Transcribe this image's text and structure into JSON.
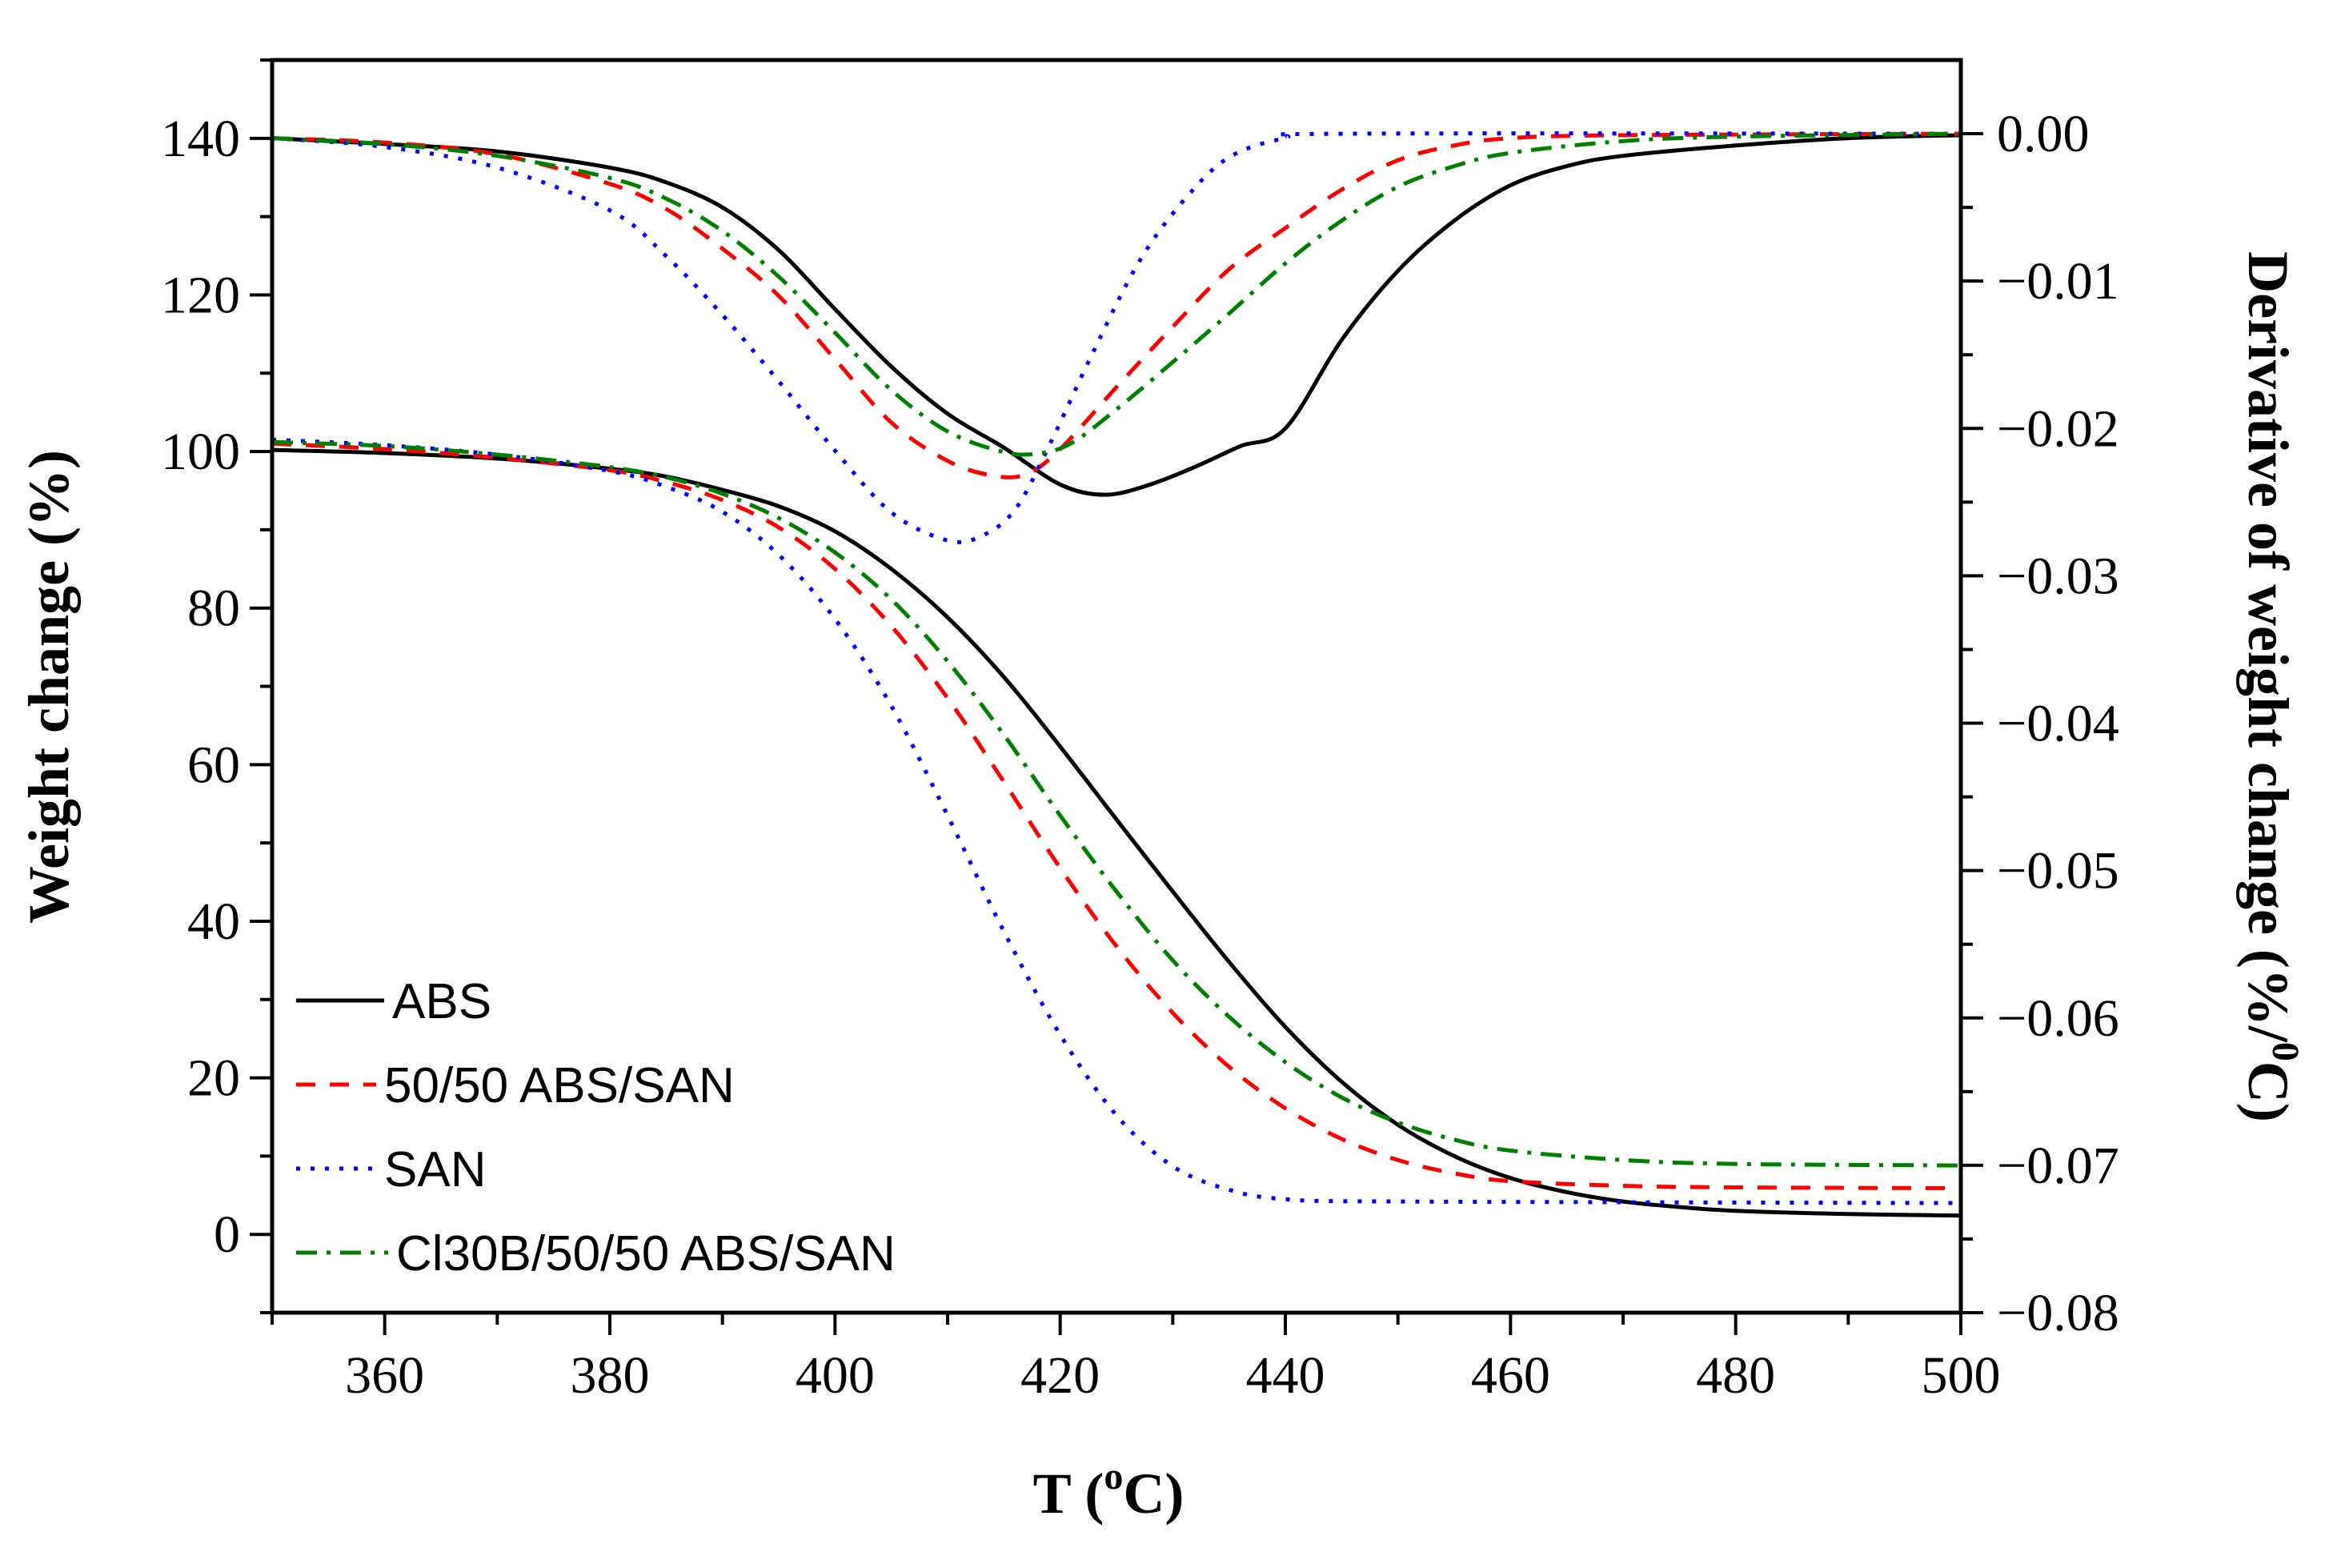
{
  "chart_data": {
    "type": "line",
    "xlabel": "T (",
    "xlabel_sup": "o",
    "xlabel_end": "C)",
    "ylabel_left": "Weight change (%)",
    "ylabel_right": "Derivative of weight change (%/",
    "ylabel_right_sup": "0",
    "ylabel_right_end": "C)",
    "xlim": [
      350,
      500
    ],
    "ylim_left": [
      -10,
      150
    ],
    "ylim_right": [
      -0.08,
      0.005
    ],
    "x_ticks": [
      "360",
      "380",
      "400",
      "420",
      "440",
      "460",
      "480",
      "500"
    ],
    "y_left_ticks": [
      "0",
      "20",
      "40",
      "60",
      "80",
      "100",
      "120",
      "140"
    ],
    "y_right_ticks": [
      "0.00",
      "−0.01",
      "−0.02",
      "−0.03",
      "−0.04",
      "−0.05",
      "−0.06",
      "−0.07",
      "−0.08"
    ],
    "legend": [
      "ABS",
      "50/50 ABS/SAN",
      "SAN",
      "Cl30B/50/50 ABS/SAN"
    ],
    "legend_position": "bottom-left",
    "series": [
      {
        "name": "ABS",
        "color": "#000000",
        "style": "solid",
        "weight": [
          [
            350,
            100.2
          ],
          [
            360,
            99.8
          ],
          [
            370,
            99.1
          ],
          [
            380,
            97.8
          ],
          [
            385,
            96.8
          ],
          [
            390,
            95.1
          ],
          [
            395,
            93
          ],
          [
            400,
            89.8
          ],
          [
            405,
            85
          ],
          [
            410,
            78.8
          ],
          [
            415,
            71.2
          ],
          [
            420,
            62.3
          ],
          [
            425,
            53
          ],
          [
            430,
            43.8
          ],
          [
            435,
            34.8
          ],
          [
            440,
            26.5
          ],
          [
            445,
            19.5
          ],
          [
            450,
            14
          ],
          [
            455,
            10
          ],
          [
            460,
            7.2
          ],
          [
            465,
            5.4
          ],
          [
            470,
            4.2
          ],
          [
            475,
            3.5
          ],
          [
            480,
            3.0
          ],
          [
            490,
            2.6
          ],
          [
            500,
            2.4
          ]
        ],
        "derivative": [
          [
            350,
            -0.0003
          ],
          [
            360,
            -0.0007
          ],
          [
            370,
            -0.0012
          ],
          [
            380,
            -0.0023
          ],
          [
            385,
            -0.0033
          ],
          [
            390,
            -0.005
          ],
          [
            395,
            -0.0079
          ],
          [
            400,
            -0.0119
          ],
          [
            405,
            -0.0158
          ],
          [
            410,
            -0.019
          ],
          [
            415,
            -0.0213
          ],
          [
            420,
            -0.0238
          ],
          [
            424,
            -0.0245
          ],
          [
            428,
            -0.0238
          ],
          [
            432,
            -0.0226
          ],
          [
            436,
            -0.0212
          ],
          [
            440,
            -0.02
          ],
          [
            445,
            -0.014
          ],
          [
            450,
            -0.0093
          ],
          [
            455,
            -0.0059
          ],
          [
            460,
            -0.0035
          ],
          [
            465,
            -0.0022
          ],
          [
            470,
            -0.0015
          ],
          [
            480,
            -0.0008
          ],
          [
            490,
            -0.0003
          ],
          [
            500,
            -0.0001
          ]
        ]
      },
      {
        "name": "50/50 ABS/SAN",
        "color": "#ff0000",
        "style": "dashed",
        "weight": [
          [
            350,
            101
          ],
          [
            360,
            100.3
          ],
          [
            370,
            99.2
          ],
          [
            380,
            97.6
          ],
          [
            385,
            96.1
          ],
          [
            390,
            93.8
          ],
          [
            395,
            90.3
          ],
          [
            400,
            85
          ],
          [
            405,
            77.7
          ],
          [
            410,
            68.5
          ],
          [
            415,
            57.8
          ],
          [
            420,
            46.8
          ],
          [
            425,
            36.8
          ],
          [
            430,
            28.3
          ],
          [
            435,
            21.4
          ],
          [
            440,
            16.1
          ],
          [
            445,
            12.2
          ],
          [
            450,
            9.5
          ],
          [
            455,
            7.8
          ],
          [
            460,
            6.8
          ],
          [
            470,
            6.2
          ],
          [
            480,
            6.0
          ],
          [
            500,
            5.9
          ]
        ],
        "derivative": [
          [
            350,
            -0.0003
          ],
          [
            360,
            -0.0006
          ],
          [
            370,
            -0.0014
          ],
          [
            380,
            -0.0034
          ],
          [
            385,
            -0.0051
          ],
          [
            390,
            -0.0078
          ],
          [
            395,
            -0.011
          ],
          [
            400,
            -0.0153
          ],
          [
            405,
            -0.0196
          ],
          [
            410,
            -0.0222
          ],
          [
            414,
            -0.0232
          ],
          [
            417,
            -0.0231
          ],
          [
            420,
            -0.0214
          ],
          [
            425,
            -0.0172
          ],
          [
            430,
            -0.0131
          ],
          [
            435,
            -0.0092
          ],
          [
            440,
            -0.0064
          ],
          [
            445,
            -0.0038
          ],
          [
            450,
            -0.0018
          ],
          [
            455,
            -0.0008
          ],
          [
            460,
            -0.0003
          ],
          [
            470,
            -0.0001
          ],
          [
            500,
            0
          ]
        ]
      },
      {
        "name": "SAN",
        "color": "#0000ff",
        "style": "dotted",
        "weight": [
          [
            350,
            101.5
          ],
          [
            360,
            100.8
          ],
          [
            370,
            99.6
          ],
          [
            380,
            97.5
          ],
          [
            385,
            95.5
          ],
          [
            390,
            92.3
          ],
          [
            395,
            86.8
          ],
          [
            400,
            78.6
          ],
          [
            405,
            67.5
          ],
          [
            410,
            53.5
          ],
          [
            415,
            38.7
          ],
          [
            420,
            25.5
          ],
          [
            425,
            15.2
          ],
          [
            430,
            8.7
          ],
          [
            435,
            5.7
          ],
          [
            440,
            4.5
          ],
          [
            450,
            4.2
          ],
          [
            500,
            4.0
          ]
        ],
        "derivative": [
          [
            350,
            -0.0003
          ],
          [
            360,
            -0.0009
          ],
          [
            370,
            -0.0023
          ],
          [
            380,
            -0.0052
          ],
          [
            385,
            -0.0083
          ],
          [
            390,
            -0.0123
          ],
          [
            395,
            -0.0168
          ],
          [
            400,
            -0.0215
          ],
          [
            405,
            -0.0257
          ],
          [
            410,
            -0.0276
          ],
          [
            413,
            -0.0273
          ],
          [
            416,
            -0.0255
          ],
          [
            419,
            -0.0212
          ],
          [
            423,
            -0.0147
          ],
          [
            427,
            -0.0087
          ],
          [
            431,
            -0.0045
          ],
          [
            435,
            -0.0016
          ],
          [
            440,
            -0.0003
          ],
          [
            445,
            0
          ],
          [
            500,
            0
          ]
        ]
      },
      {
        "name": "Cl30B/50/50 ABS/SAN",
        "color": "#008000",
        "style": "dashdot",
        "weight": [
          [
            350,
            101.2
          ],
          [
            360,
            100.7
          ],
          [
            370,
            99.6
          ],
          [
            380,
            98
          ],
          [
            385,
            96.7
          ],
          [
            390,
            94.6
          ],
          [
            395,
            91.5
          ],
          [
            400,
            87.1
          ],
          [
            405,
            81.1
          ],
          [
            410,
            73.2
          ],
          [
            415,
            63.8
          ],
          [
            420,
            53.5
          ],
          [
            425,
            43.8
          ],
          [
            430,
            35
          ],
          [
            435,
            27.8
          ],
          [
            440,
            22
          ],
          [
            445,
            17.5
          ],
          [
            450,
            14.3
          ],
          [
            455,
            12.1
          ],
          [
            460,
            10.7
          ],
          [
            470,
            9.5
          ],
          [
            480,
            9.0
          ],
          [
            500,
            8.8
          ]
        ],
        "derivative": [
          [
            350,
            -0.0003
          ],
          [
            360,
            -0.0007
          ],
          [
            370,
            -0.0015
          ],
          [
            380,
            -0.003
          ],
          [
            385,
            -0.0044
          ],
          [
            390,
            -0.0066
          ],
          [
            395,
            -0.0097
          ],
          [
            400,
            -0.0135
          ],
          [
            405,
            -0.0174
          ],
          [
            410,
            -0.0202
          ],
          [
            415,
            -0.0216
          ],
          [
            418,
            -0.0217
          ],
          [
            421,
            -0.021
          ],
          [
            425,
            -0.0187
          ],
          [
            430,
            -0.0155
          ],
          [
            435,
            -0.0122
          ],
          [
            440,
            -0.0088
          ],
          [
            445,
            -0.0059
          ],
          [
            450,
            -0.0036
          ],
          [
            455,
            -0.0022
          ],
          [
            460,
            -0.0013
          ],
          [
            470,
            -0.0005
          ],
          [
            480,
            -0.0002
          ],
          [
            500,
            0
          ]
        ]
      }
    ]
  }
}
